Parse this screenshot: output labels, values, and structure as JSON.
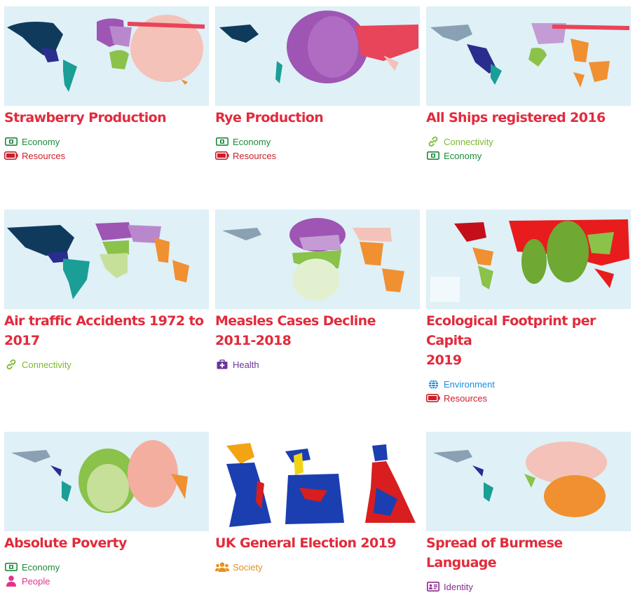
{
  "colors": {
    "title": "#e12b3c",
    "economy": "#1e8a3c",
    "resources": "#cc1f2a",
    "connectivity": "#7cb82e",
    "health": "#6a3597",
    "environment": "#1a8ee0",
    "people": "#e0338a",
    "society": "#e8901a",
    "identity": "#8a2a8e",
    "ocean": "#dff0f7"
  },
  "cards": [
    {
      "title_lines": [
        "Strawberry Production"
      ],
      "tags": [
        {
          "label": "Economy",
          "icon": "money-icon",
          "kind": "economy"
        },
        {
          "label": "Resources",
          "icon": "battery-icon",
          "kind": "resources"
        }
      ]
    },
    {
      "title_lines": [
        "Rye Production"
      ],
      "tags": [
        {
          "label": "Economy",
          "icon": "money-icon",
          "kind": "economy"
        },
        {
          "label": "Resources",
          "icon": "battery-icon",
          "kind": "resources"
        }
      ]
    },
    {
      "title_lines": [
        "All Ships registered 2016"
      ],
      "tags": [
        {
          "label": "Connectivity",
          "icon": "link-icon",
          "kind": "connectivity"
        },
        {
          "label": "Economy",
          "icon": "money-icon",
          "kind": "economy"
        }
      ]
    },
    {
      "title_lines": [
        "Air traffic Accidents 1972 to 2017"
      ],
      "tags": [
        {
          "label": "Connectivity",
          "icon": "link-icon",
          "kind": "connectivity"
        }
      ]
    },
    {
      "title_lines": [
        "Measles Cases Decline",
        "2011-2018"
      ],
      "tags": [
        {
          "label": "Health",
          "icon": "medical-kit-icon",
          "kind": "health"
        }
      ]
    },
    {
      "title_lines": [
        "Ecological Footprint per Capita",
        "2019"
      ],
      "tags": [
        {
          "label": "Environment",
          "icon": "globe-icon",
          "kind": "environment"
        },
        {
          "label": "Resources",
          "icon": "battery-icon",
          "kind": "resources"
        }
      ]
    },
    {
      "title_lines": [
        "Absolute Poverty"
      ],
      "tags": [
        {
          "label": "Economy",
          "icon": "money-icon",
          "kind": "economy"
        },
        {
          "label": "People",
          "icon": "person-icon",
          "kind": "people"
        }
      ]
    },
    {
      "title_lines": [
        "UK General Election 2019"
      ],
      "tags": [
        {
          "label": "Society",
          "icon": "group-icon",
          "kind": "society"
        }
      ]
    },
    {
      "title_lines": [
        "Spread of Burmese Language"
      ],
      "tags": [
        {
          "label": "Identity",
          "icon": "id-card-icon",
          "kind": "identity"
        }
      ]
    }
  ]
}
